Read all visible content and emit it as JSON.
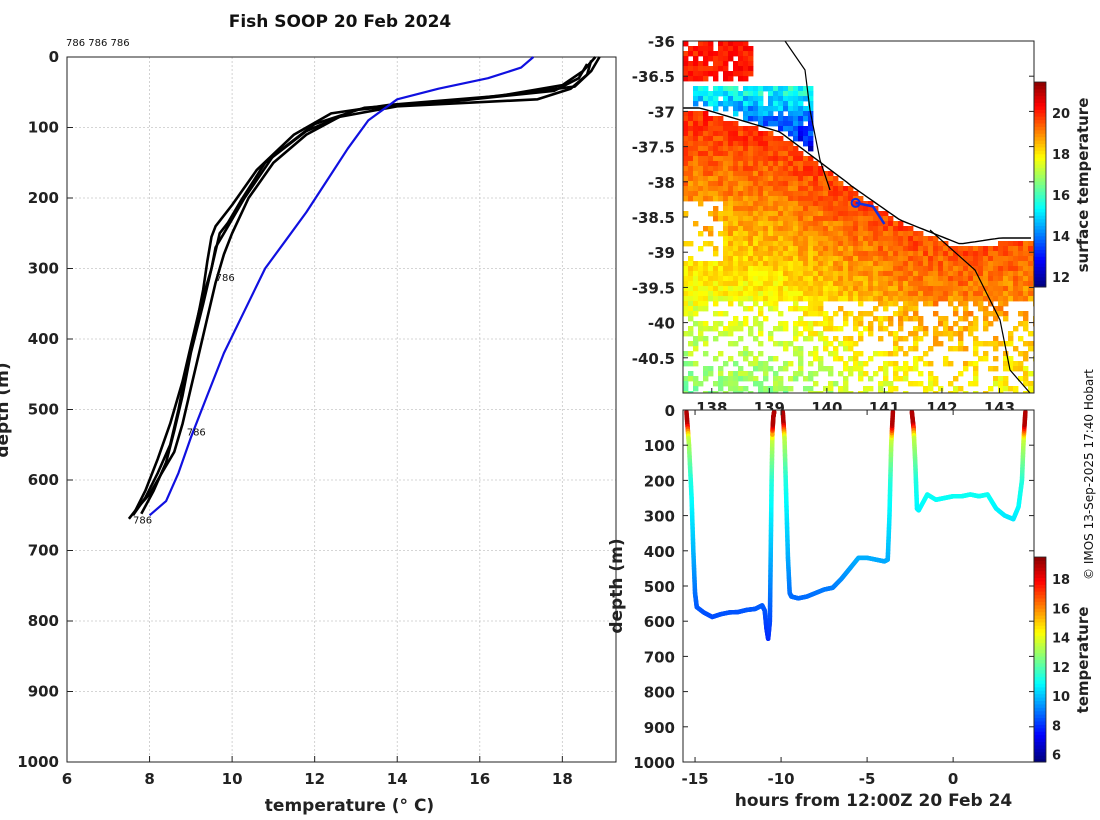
{
  "title": "Fish SOOP 20 Feb 2024",
  "profile_tag": "786 786 786",
  "profile_markers": [
    "786",
    "786",
    "786"
  ],
  "credit": "© IMOS 13-Sep-2025 17:40 Hobart",
  "colors": {
    "profile_black": "#000000",
    "profile_blue": "#1010e0",
    "track_blue": "#1030e0"
  },
  "chart_data": [
    {
      "type": "line",
      "title": "Fish SOOP 20 Feb 2024",
      "xlabel": "temperature (° C)",
      "ylabel": "depth (m)",
      "xlim": [
        6,
        19.3
      ],
      "ylim": [
        1000,
        0
      ],
      "x_ticks": [
        6,
        8,
        10,
        12,
        14,
        16,
        18
      ],
      "y_ticks": [
        0,
        100,
        200,
        300,
        400,
        500,
        600,
        700,
        800,
        900,
        1000
      ],
      "grid": true,
      "series": [
        {
          "name": "profile-1",
          "color": "#000000",
          "x": [
            18.7,
            18.6,
            18.2,
            17.4,
            14.0,
            12.6,
            11.8,
            11.0,
            10.4,
            10.0,
            9.8,
            9.6,
            9.4,
            9.2,
            9.0,
            8.8,
            8.6,
            8.3,
            8.0,
            7.7,
            7.5
          ],
          "y": [
            5,
            25,
            45,
            60,
            70,
            85,
            110,
            150,
            200,
            250,
            280,
            320,
            370,
            420,
            470,
            520,
            560,
            590,
            620,
            640,
            655
          ]
        },
        {
          "name": "profile-2",
          "color": "#000000",
          "x": [
            18.8,
            18.5,
            18.0,
            16.5,
            13.8,
            12.4,
            11.5,
            10.6,
            10.0,
            9.6,
            9.5,
            9.4,
            9.3,
            9.1,
            8.9,
            8.7,
            8.5,
            8.2,
            7.9,
            7.6
          ],
          "y": [
            0,
            20,
            40,
            55,
            68,
            80,
            110,
            160,
            210,
            240,
            255,
            290,
            330,
            390,
            440,
            500,
            550,
            590,
            625,
            650
          ]
        },
        {
          "name": "profile-3",
          "color": "#000000",
          "x": [
            18.6,
            18.4,
            17.8,
            15.5,
            13.2,
            12.0,
            11.0,
            10.3,
            9.8,
            9.6,
            9.5,
            9.3,
            9.0,
            8.8,
            8.6,
            8.4,
            8.1,
            7.8
          ],
          "y": [
            10,
            30,
            48,
            62,
            72,
            95,
            140,
            200,
            250,
            270,
            300,
            350,
            420,
            480,
            530,
            575,
            615,
            648
          ]
        },
        {
          "name": "profile-4",
          "color": "#000000",
          "x": [
            18.9,
            18.7,
            18.3,
            16.0,
            13.0,
            11.8,
            10.8,
            10.2,
            9.9,
            9.7,
            9.5,
            9.2,
            9.0,
            8.8,
            8.5,
            8.2,
            7.9,
            7.6
          ],
          "y": [
            0,
            20,
            42,
            58,
            75,
            105,
            150,
            205,
            235,
            250,
            300,
            360,
            410,
            460,
            520,
            570,
            615,
            650
          ]
        },
        {
          "name": "profile-5",
          "color": "#1010e0",
          "x": [
            17.3,
            17.0,
            16.2,
            15.0,
            14.0,
            13.3,
            12.8,
            12.3,
            11.8,
            11.3,
            10.8,
            10.3,
            9.8,
            9.4,
            9.0,
            8.7,
            8.4,
            8.0
          ],
          "y": [
            0,
            15,
            30,
            45,
            60,
            90,
            130,
            175,
            220,
            260,
            300,
            360,
            420,
            480,
            540,
            590,
            630,
            650
          ]
        }
      ]
    },
    {
      "type": "heatmap",
      "colorbar_label": "surface temperature",
      "colorbar_ticks": [
        12,
        14,
        16,
        18,
        20
      ],
      "colorbar_range": [
        11.5,
        21.5
      ],
      "y_ticks": [
        "-36",
        "-36.5",
        "-37",
        "-37.5",
        "-38",
        "-38.5",
        "-39",
        "-39.5",
        "-40",
        "-40.5"
      ],
      "x_ticks": [
        "138",
        "139",
        "140",
        "141",
        "142",
        "143"
      ],
      "ylim": [
        -41,
        -36
      ],
      "xlim": [
        137.5,
        143.6
      ],
      "track": [
        [
          140.5,
          -38.3
        ],
        [
          140.8,
          -38.35
        ],
        [
          141.0,
          -38.6
        ]
      ]
    },
    {
      "type": "scatter",
      "xlabel": "hours from 12:00Z 20 Feb 24",
      "ylabel": "depth (m)",
      "colorbar_label": "temperature",
      "colorbar_ticks": [
        6,
        8,
        10,
        12,
        14,
        16,
        18
      ],
      "colorbar_range": [
        5.5,
        19.5
      ],
      "x_ticks": [
        -15,
        -10,
        -5,
        0
      ],
      "y_ticks": [
        0,
        100,
        200,
        300,
        400,
        500,
        600,
        700,
        800,
        900,
        1000
      ],
      "xlim": [
        -15.7,
        4.7
      ],
      "ylim": [
        1000,
        0
      ],
      "segments": [
        {
          "t": [
            -15.5,
            -15.35,
            -15.2,
            -15.1,
            -15.0,
            -14.9,
            -14.5,
            -14.0,
            -13.5,
            -13.0,
            -12.5,
            -12.0,
            -11.5,
            -11.1,
            -10.95,
            -10.85,
            -10.75,
            -10.65,
            -10.6,
            -10.55,
            -10.5,
            -10.45,
            -10.4
          ],
          "d": [
            5,
            100,
            250,
            400,
            520,
            560,
            575,
            588,
            580,
            575,
            574,
            568,
            565,
            555,
            570,
            620,
            650,
            600,
            400,
            200,
            60,
            20,
            5
          ]
        },
        {
          "t": [
            -9.9,
            -9.8,
            -9.7,
            -9.6,
            -9.5,
            -9.4,
            -9.0,
            -8.5,
            -8.0,
            -7.5,
            -7.0,
            -6.5,
            -6.0,
            -5.5,
            -5.0,
            -4.5,
            -4.0,
            -3.8,
            -3.7,
            -3.6,
            -3.5
          ],
          "d": [
            5,
            80,
            250,
            420,
            520,
            530,
            535,
            530,
            520,
            510,
            505,
            480,
            450,
            420,
            420,
            425,
            430,
            425,
            300,
            100,
            5
          ]
        },
        {
          "t": [
            -2.4,
            -2.3,
            -2.2,
            -2.1,
            -2.0,
            -1.5,
            -1.0,
            -0.5,
            0.0,
            0.5,
            1.0,
            1.5,
            2.0,
            2.5,
            3.0,
            3.5,
            3.8,
            4.0,
            4.1,
            4.2
          ],
          "d": [
            5,
            50,
            150,
            280,
            285,
            240,
            255,
            250,
            245,
            245,
            240,
            245,
            240,
            280,
            300,
            310,
            275,
            200,
            80,
            5
          ]
        }
      ]
    }
  ]
}
